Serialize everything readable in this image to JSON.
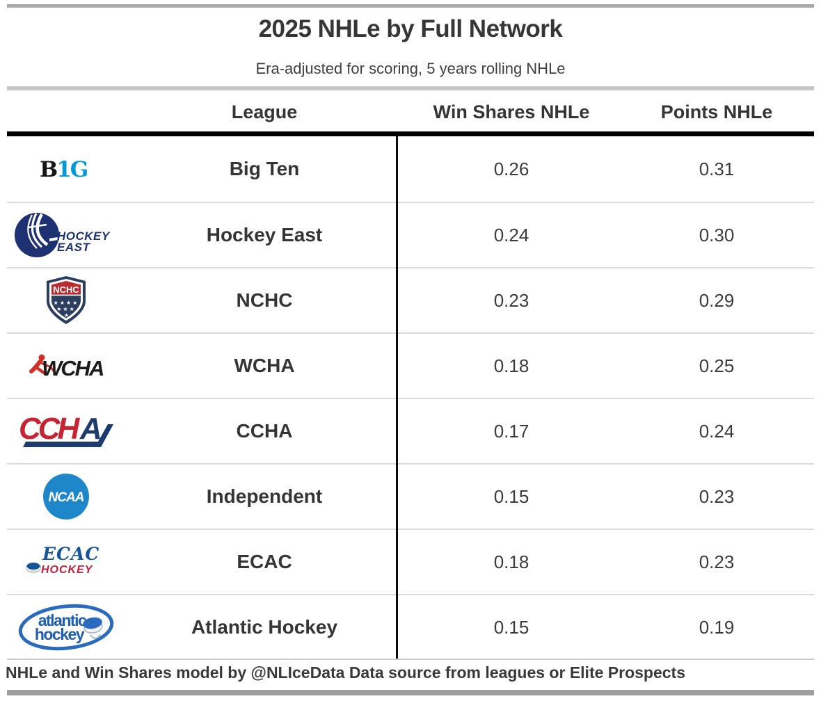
{
  "title": "2025 NHLe by Full Network",
  "subtitle": "Era-adjusted for scoring, 5 years rolling NHLe",
  "columns": {
    "league": "League",
    "win_shares": "Win Shares NHLe",
    "points": "Points NHLe"
  },
  "rows": [
    {
      "logo": "big-ten-logo",
      "league": "Big Ten",
      "win_shares": "0.26",
      "points": "0.31"
    },
    {
      "logo": "hockey-east-logo",
      "league": "Hockey East",
      "win_shares": "0.24",
      "points": "0.30"
    },
    {
      "logo": "nchc-logo",
      "league": "NCHC",
      "win_shares": "0.23",
      "points": "0.29"
    },
    {
      "logo": "wcha-logo",
      "league": "WCHA",
      "win_shares": "0.18",
      "points": "0.25"
    },
    {
      "logo": "ccha-logo",
      "league": "CCHA",
      "win_shares": "0.17",
      "points": "0.24"
    },
    {
      "logo": "ncaa-logo",
      "league": "Independent",
      "win_shares": "0.15",
      "points": "0.23"
    },
    {
      "logo": "ecac-logo",
      "league": "ECAC",
      "win_shares": "0.18",
      "points": "0.23"
    },
    {
      "logo": "atlantic-hockey-logo",
      "league": "Atlantic Hockey",
      "win_shares": "0.15",
      "points": "0.19"
    }
  ],
  "footer": "NHLe and Win Shares model by @NLIceData Data source from leagues or Elite Prospects",
  "colors": {
    "bar_gray": "#a8a8a8",
    "divider_gray": "#c6c6c6",
    "row_separator": "#dcdcdc",
    "line_black": "#000000",
    "text_dark": "#3a3a3a",
    "big_ten_blue": "#0099d8",
    "hockey_east_navy": "#1e3173",
    "nchc_red": "#b92b30",
    "nchc_navy": "#2c3e5f",
    "wcha_red": "#d03027",
    "ccha_red": "#c62433",
    "ccha_navy": "#1d3b6d",
    "ncaa_blue": "#1d87ca",
    "ecac_blue": "#14549b",
    "ecac_red": "#c41e3a",
    "atlantic_blue": "#2a6bc0"
  }
}
